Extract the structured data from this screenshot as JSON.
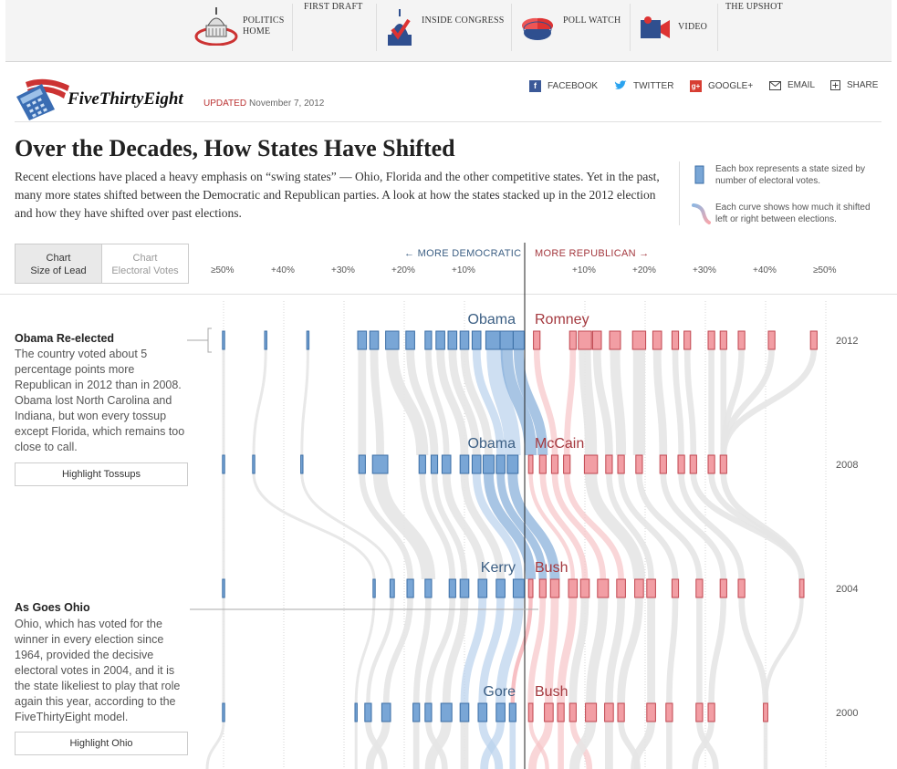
{
  "nav": {
    "items": [
      {
        "label1": "POLITICS",
        "label2": "HOME"
      },
      {
        "label1": "FIRST DRAFT"
      },
      {
        "label1": "INSIDE CONGRESS"
      },
      {
        "label1": "POLL WATCH"
      },
      {
        "label1": "VIDEO"
      },
      {
        "label1": "THE UPSHOT"
      }
    ]
  },
  "header": {
    "logo_text": "FiveThirtyEight",
    "updated_label": "UPDATED",
    "updated_date": "November 7, 2012"
  },
  "share": {
    "facebook": "FACEBOOK",
    "twitter": "TWITTER",
    "google": "GOOGLE+",
    "email": "EMAIL",
    "share": "SHARE"
  },
  "article": {
    "title": "Over the Decades, How States Have Shifted",
    "description": "Recent elections have placed a heavy emphasis on “swing states” — Ohio, Florida and the other competitive states. Yet in the past, many more states shifted between the Democratic and Republican parties. A look at how the states stacked up in the 2012 election and how they have shifted over past elections."
  },
  "legend": {
    "box_text": "Each box represents a state sized by number of electoral votes.",
    "curve_text": "Each curve shows how much it shifted left or right between elections."
  },
  "toggle": {
    "opt1_line1": "Chart",
    "opt1_line2": "Size of Lead",
    "opt2_line1": "Chart",
    "opt2_line2": "Electoral Votes"
  },
  "directions": {
    "dem": "← MORE DEMOCRATIC",
    "rep": "MORE REPUBLICAN →"
  },
  "annotations": {
    "reelected_title": "Obama Re-elected",
    "reelected_body": "The country voted about 5 percentage points more Republican in 2012 than in 2008. Obama lost North Carolina and Indiana, but won every tossup except Florida, which remains too close to call.",
    "tossups_button": "Highlight Tossups",
    "ohio_title": "As Goes Ohio",
    "ohio_body": "Ohio, which has voted for the winner in every election since 1964, provided the decisive electoral votes in 2004, and it is the state likeliest to play that role again this year, according to the FiveThirtyEight model.",
    "ohio_button": "Highlight Ohio"
  },
  "colors": {
    "dem": "#79a6d6",
    "dem_border": "#3b6ea5",
    "rep": "#f29ea4",
    "rep_border": "#c0464f",
    "dem_text": "#3c5f84",
    "rep_text": "#a4393f",
    "flow": "#e6e6e6"
  },
  "chart_data": {
    "type": "scatter",
    "x_unit": "margin (percentage points, negative = Democratic)",
    "x_range": [
      -50,
      50
    ],
    "ticks": [
      "≥50%",
      "+40%",
      "+30%",
      "+20%",
      "+10%",
      "+10%",
      "+20%",
      "+30%",
      "+40%",
      "≥50%"
    ],
    "tick_values": [
      -50,
      -40,
      -30,
      -20,
      -10,
      10,
      20,
      30,
      40,
      50
    ],
    "rows": [
      {
        "year": "2012",
        "dem": "Obama",
        "rep": "Romney",
        "states": [
          [
            -50,
            1
          ],
          [
            -43,
            1
          ],
          [
            -36,
            1
          ],
          [
            -27,
            4
          ],
          [
            -25,
            4
          ],
          [
            -22,
            6
          ],
          [
            -19,
            4
          ],
          [
            -16,
            3
          ],
          [
            -14,
            4
          ],
          [
            -12,
            4
          ],
          [
            -10,
            4
          ],
          [
            -8,
            4
          ],
          [
            -5,
            8
          ],
          [
            -3,
            6
          ],
          [
            -1,
            5
          ],
          [
            2,
            3
          ],
          [
            8,
            3
          ],
          [
            10,
            6
          ],
          [
            12,
            4
          ],
          [
            15,
            5
          ],
          [
            19,
            6
          ],
          [
            22,
            4
          ],
          [
            25,
            3
          ],
          [
            27,
            3
          ],
          [
            31,
            3
          ],
          [
            33,
            3
          ],
          [
            36,
            3
          ],
          [
            41,
            3
          ],
          [
            48,
            3
          ]
        ]
      },
      {
        "year": "2008",
        "dem": "Obama",
        "rep": "McCain",
        "states": [
          [
            -50,
            1
          ],
          [
            -45,
            1
          ],
          [
            -37,
            1
          ],
          [
            -27,
            3
          ],
          [
            -24,
            7
          ],
          [
            -17,
            3
          ],
          [
            -15,
            3
          ],
          [
            -13,
            4
          ],
          [
            -10,
            4
          ],
          [
            -8,
            4
          ],
          [
            -6,
            5
          ],
          [
            -4,
            4
          ],
          [
            -2,
            5
          ],
          [
            1,
            2
          ],
          [
            3,
            3
          ],
          [
            5,
            3
          ],
          [
            7,
            3
          ],
          [
            11,
            6
          ],
          [
            14,
            3
          ],
          [
            16,
            3
          ],
          [
            19,
            3
          ],
          [
            23,
            3
          ],
          [
            26,
            3
          ],
          [
            28,
            3
          ],
          [
            31,
            3
          ],
          [
            33,
            3
          ]
        ]
      },
      {
        "year": "2004",
        "dem": "Kerry",
        "rep": "Bush",
        "states": [
          [
            -50,
            1
          ],
          [
            -25,
            1
          ],
          [
            -22,
            2
          ],
          [
            -19,
            3
          ],
          [
            -16,
            3
          ],
          [
            -12,
            3
          ],
          [
            -10,
            4
          ],
          [
            -7,
            4
          ],
          [
            -4,
            4
          ],
          [
            -1,
            5
          ],
          [
            1,
            2
          ],
          [
            3,
            3
          ],
          [
            5,
            4
          ],
          [
            8,
            4
          ],
          [
            10,
            4
          ],
          [
            13,
            5
          ],
          [
            16,
            4
          ],
          [
            19,
            4
          ],
          [
            21,
            4
          ],
          [
            25,
            3
          ],
          [
            29,
            3
          ],
          [
            33,
            3
          ],
          [
            36,
            3
          ],
          [
            46,
            2
          ]
        ]
      },
      {
        "year": "2000",
        "dem": "Gore",
        "rep": "Bush",
        "states": [
          [
            -50,
            1
          ],
          [
            -28,
            1
          ],
          [
            -26,
            3
          ],
          [
            -23,
            4
          ],
          [
            -18,
            3
          ],
          [
            -16,
            3
          ],
          [
            -13,
            5
          ],
          [
            -10,
            4
          ],
          [
            -7,
            4
          ],
          [
            -4,
            4
          ],
          [
            -2,
            3
          ],
          [
            1,
            2
          ],
          [
            4,
            4
          ],
          [
            6,
            3
          ],
          [
            8,
            3
          ],
          [
            11,
            5
          ],
          [
            14,
            4
          ],
          [
            16,
            3
          ],
          [
            21,
            4
          ],
          [
            24,
            3
          ],
          [
            29,
            3
          ],
          [
            31,
            3
          ],
          [
            40,
            2
          ]
        ]
      }
    ]
  }
}
